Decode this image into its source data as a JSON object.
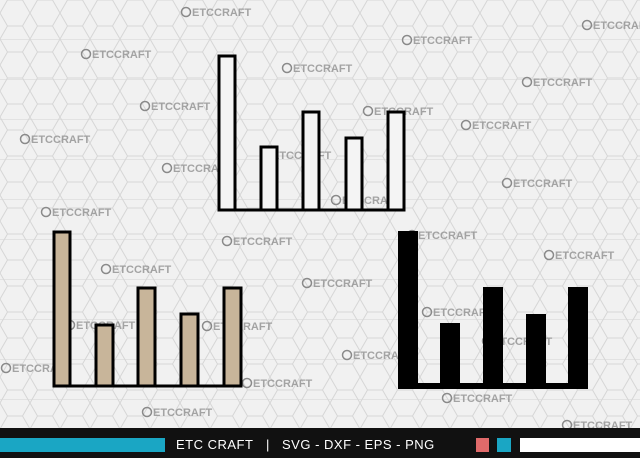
{
  "watermark": "ETCCRAFT",
  "footer": {
    "brand": "ETC CRAFT",
    "separator": "|",
    "formats": "SVG - DXF - EPS - PNG"
  }
}
